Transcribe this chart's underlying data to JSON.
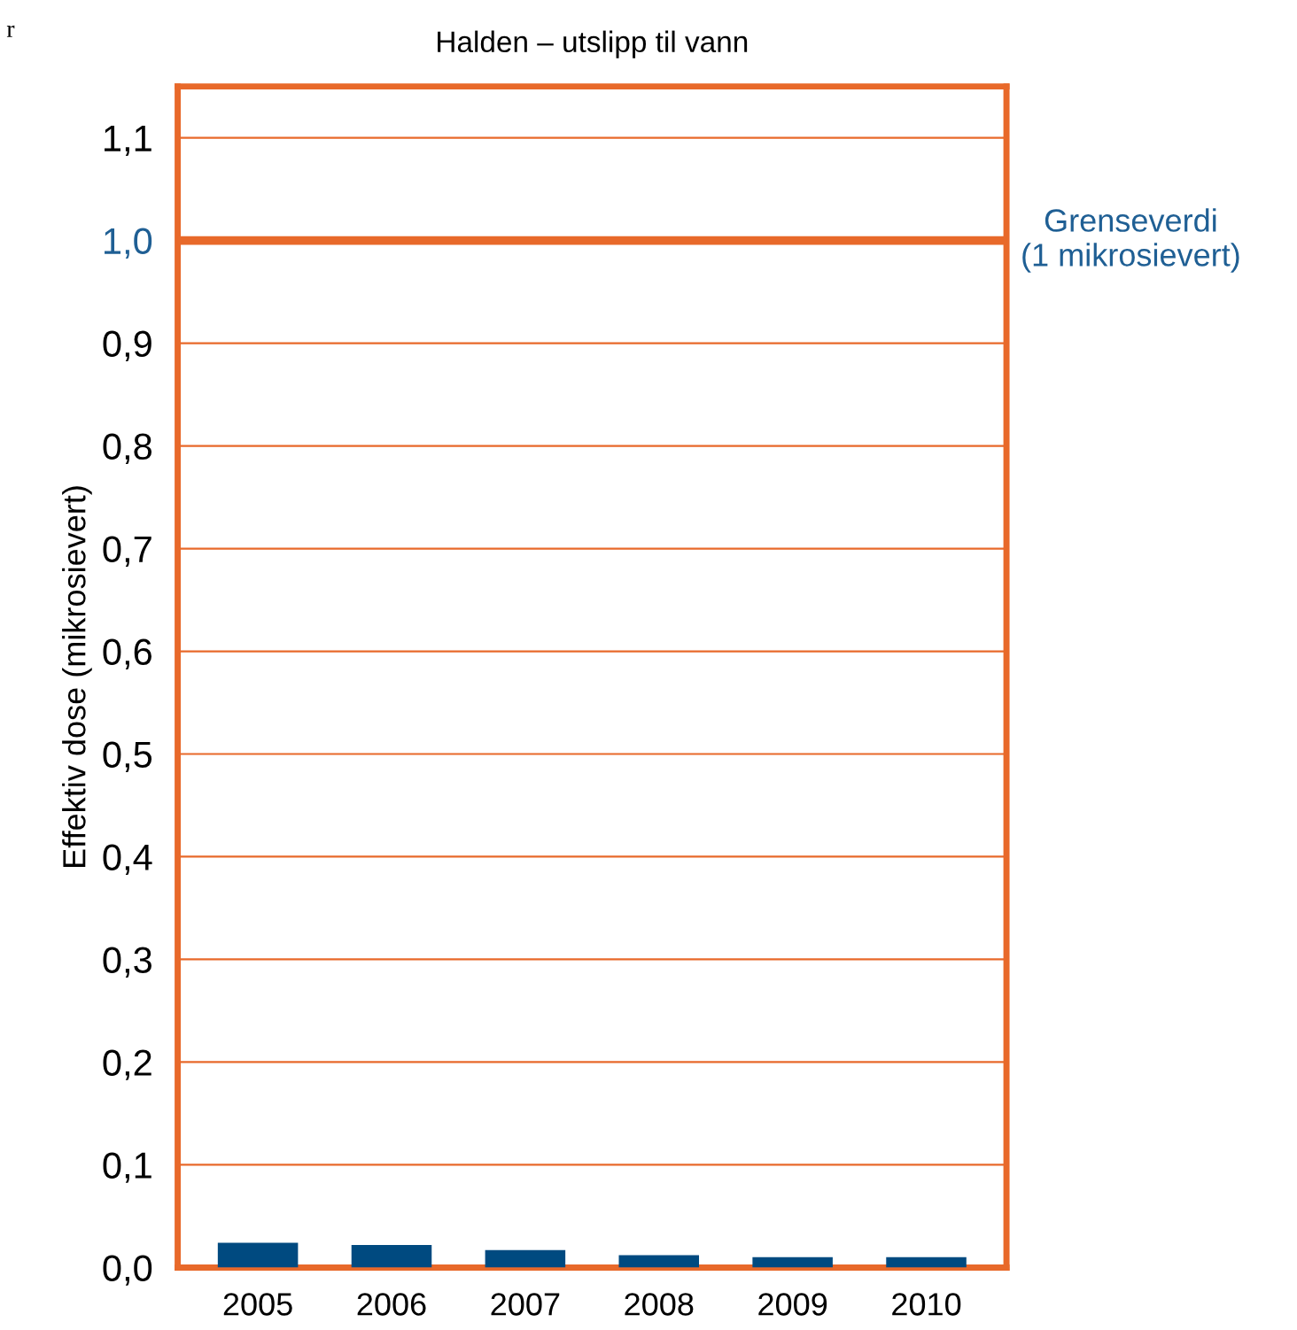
{
  "chart_data": {
    "type": "bar",
    "title": "Halden – utslipp til vann",
    "ylabel": "Effektiv dose (mikrosievert)",
    "categories": [
      "2005",
      "2006",
      "2007",
      "2008",
      "2009",
      "2010"
    ],
    "series": [
      {
        "color": "#004a80",
        "values": [
          0.024,
          0.022,
          0.017,
          0.012,
          0.01,
          0.01
        ]
      }
    ],
    "ylim": [
      0,
      1.15
    ],
    "yticks": [
      {
        "value": 0,
        "label": "0,0"
      },
      {
        "value": 0.1,
        "label": "0,1"
      },
      {
        "value": 0.2,
        "label": "0,2"
      },
      {
        "value": 0.3,
        "label": "0,3"
      },
      {
        "value": 0.4,
        "label": "0,4"
      },
      {
        "value": 0.5,
        "label": "0,5"
      },
      {
        "value": 0.6,
        "label": "0,6"
      },
      {
        "value": 0.7,
        "label": "0,7"
      },
      {
        "value": 0.8,
        "label": "0,8"
      },
      {
        "value": 0.9,
        "label": "0,9"
      },
      {
        "value": 1.0,
        "label": "1,0"
      },
      {
        "value": 1.1,
        "label": "1,1"
      }
    ],
    "ref_lines": [
      {
        "axis": "y",
        "value": 1.0,
        "label": "Grenseverdi\n(1 mikrosievert)",
        "color": "#e8692a"
      }
    ],
    "grid": "y",
    "annotations": [
      "r"
    ]
  }
}
